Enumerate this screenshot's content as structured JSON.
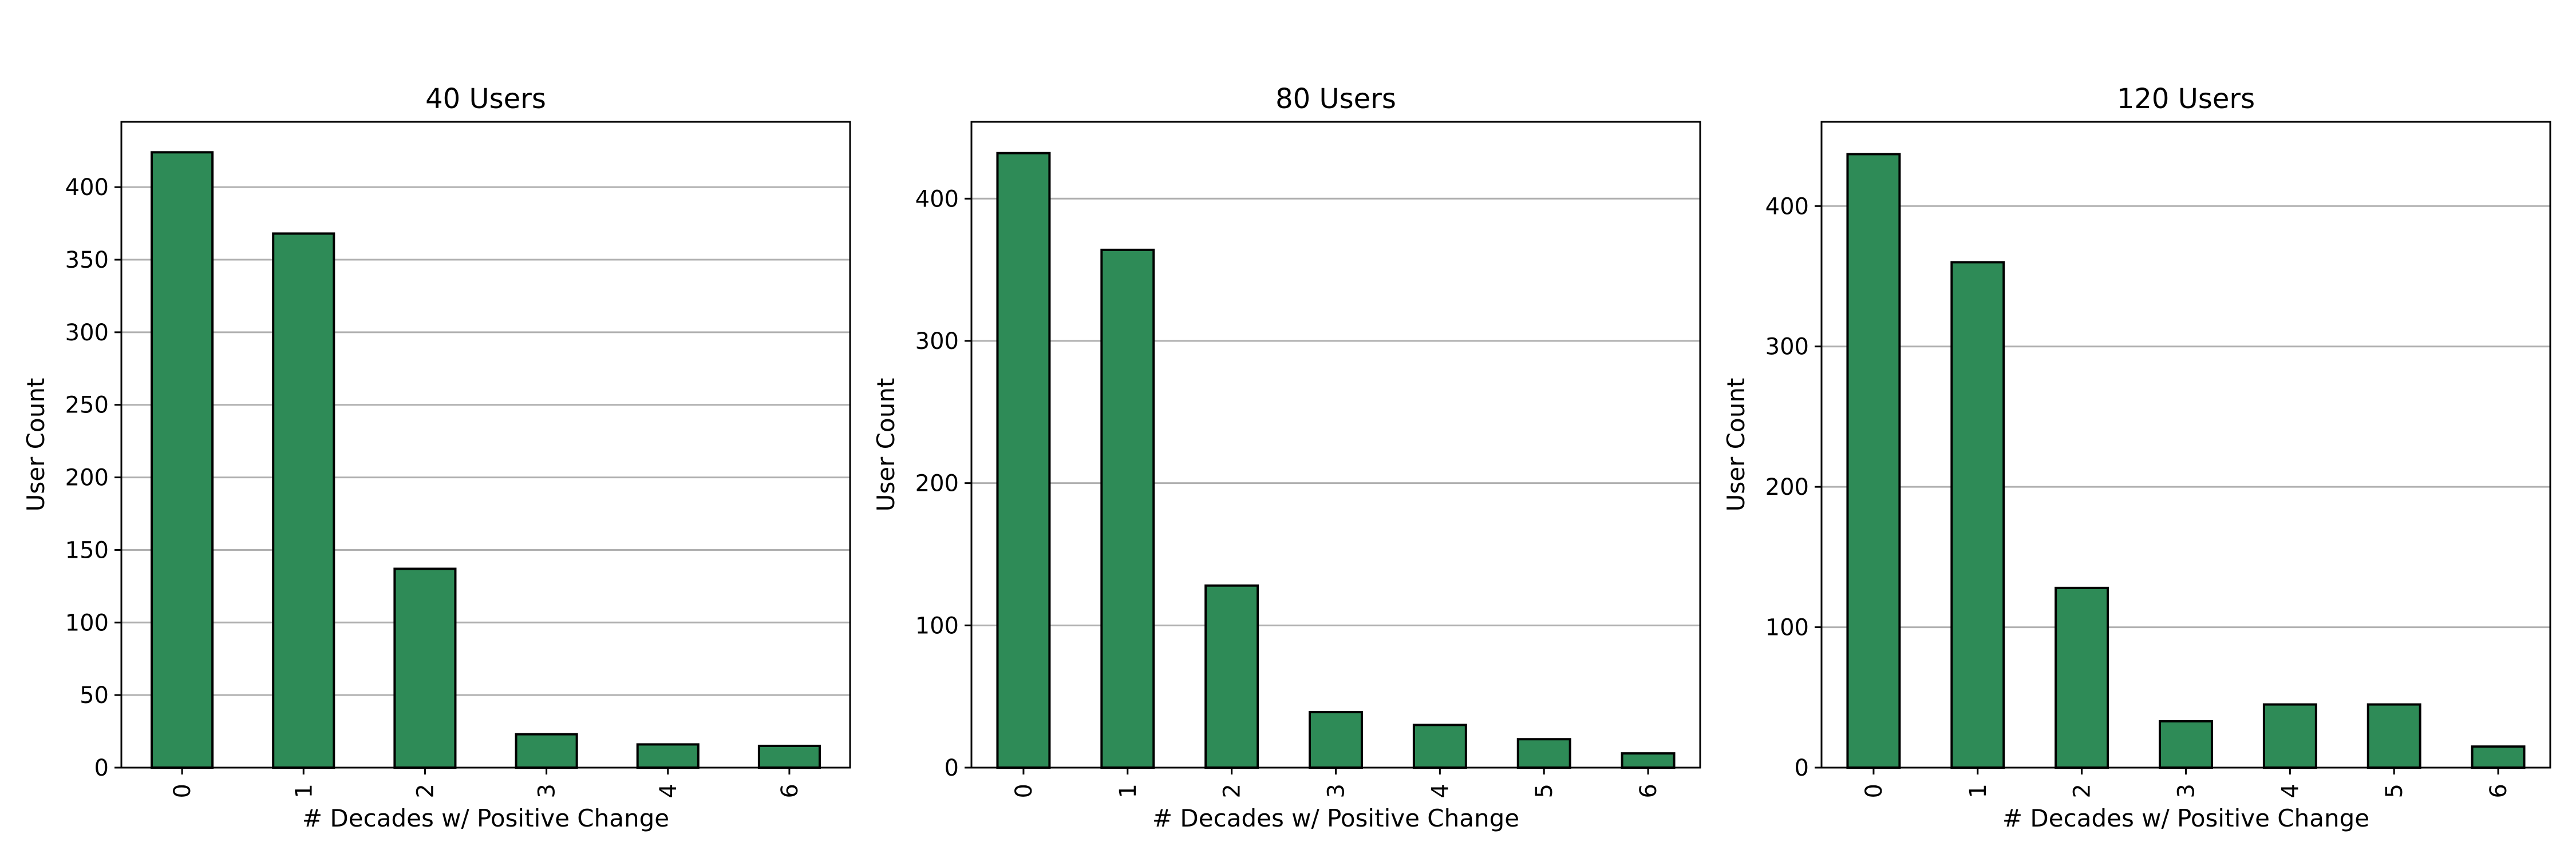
{
  "chart_data": [
    {
      "type": "bar",
      "title": "40 Users",
      "xlabel": "# Decades w/ Positive Change",
      "ylabel": "User Count",
      "categories": [
        "0",
        "1",
        "2",
        "3",
        "4",
        "6"
      ],
      "values": [
        424,
        368,
        137,
        23,
        16,
        15
      ],
      "ylim": [
        0,
        445
      ],
      "yticks": [
        0,
        50,
        100,
        150,
        200,
        250,
        300,
        350,
        400
      ],
      "grid": "y",
      "bar_color": "#2e8b57"
    },
    {
      "type": "bar",
      "title": "80 Users",
      "xlabel": "# Decades w/ Positive Change",
      "ylabel": "User Count",
      "categories": [
        "0",
        "1",
        "2",
        "3",
        "4",
        "5",
        "6"
      ],
      "values": [
        432,
        364,
        128,
        39,
        30,
        20,
        10
      ],
      "ylim": [
        0,
        454
      ],
      "yticks": [
        0,
        100,
        200,
        300,
        400
      ],
      "grid": "y",
      "bar_color": "#2e8b57"
    },
    {
      "type": "bar",
      "title": "120 Users",
      "xlabel": "# Decades w/ Positive Change",
      "ylabel": "User Count",
      "categories": [
        "0",
        "1",
        "2",
        "3",
        "4",
        "5",
        "6"
      ],
      "values": [
        437,
        360,
        128,
        33,
        45,
        45,
        15
      ],
      "ylim": [
        0,
        460
      ],
      "yticks": [
        0,
        100,
        200,
        300,
        400
      ],
      "grid": "y",
      "bar_color": "#2e8b57"
    }
  ]
}
